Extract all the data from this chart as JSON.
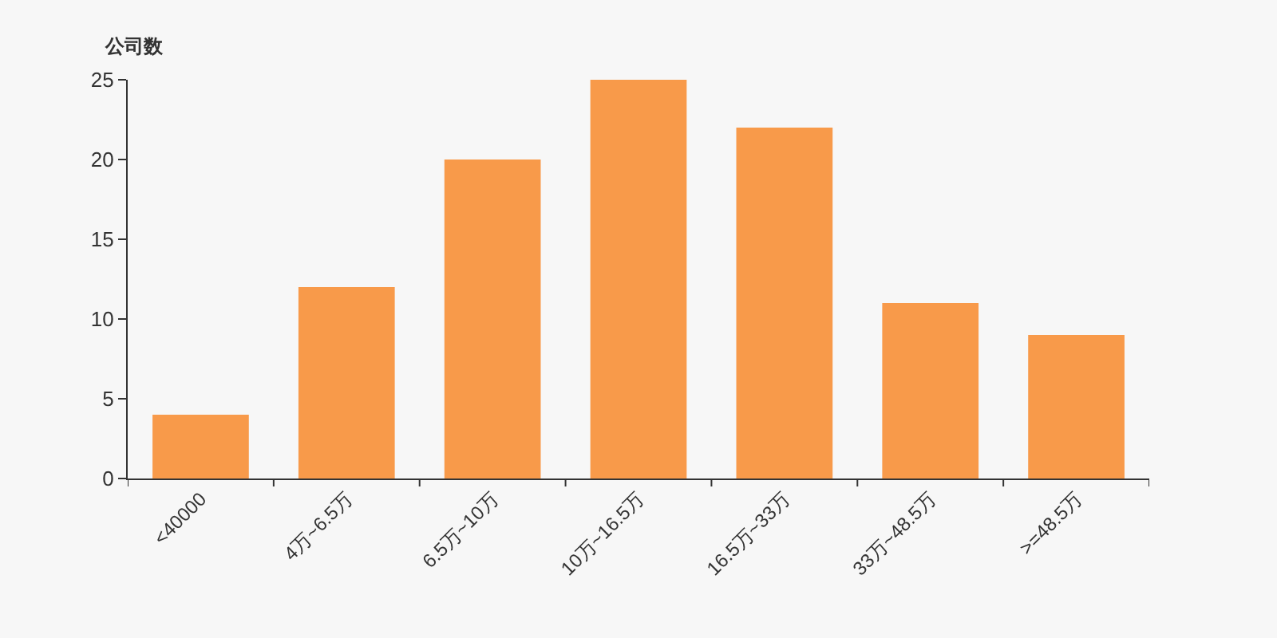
{
  "chart_data": {
    "type": "bar",
    "ylabel": "公司数",
    "categories": [
      "<40000",
      "4万~6.5万",
      "6.5万~10万",
      "10万~16.5万",
      "16.5万~33万",
      "33万~48.5万",
      ">=48.5万"
    ],
    "values": [
      4,
      12,
      20,
      25,
      22,
      11,
      9
    ],
    "color": "#f89a4a",
    "ylim": [
      0,
      25
    ],
    "yticks": [
      0,
      5,
      10,
      15,
      20,
      25
    ],
    "grid": false
  }
}
